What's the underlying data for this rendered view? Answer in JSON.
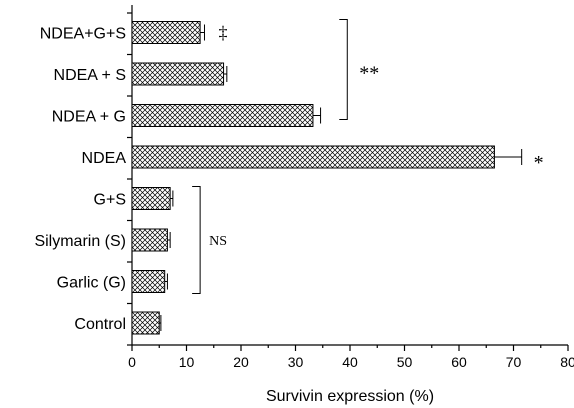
{
  "chart_data": {
    "type": "bar",
    "orientation": "horizontal",
    "categories": [
      "NDEA+G+S",
      "NDEA + S",
      "NDEA + G",
      "NDEA",
      "G+S",
      "Silymarin (S)",
      "Garlic (G)",
      "Control"
    ],
    "values": [
      12.5,
      16.8,
      33.2,
      66.5,
      7.0,
      6.5,
      6.0,
      5.0
    ],
    "errors": [
      0.8,
      0.6,
      1.4,
      5.0,
      0.5,
      0.5,
      0.5,
      0.3
    ],
    "xlabel": "Survivin expression (%)",
    "ylabel": "",
    "xlim": [
      0,
      80
    ],
    "xticks": [
      0,
      10,
      20,
      30,
      40,
      50,
      60,
      70,
      80
    ],
    "grid": false,
    "legend": "none",
    "annotations": {
      "dagger": {
        "text": "‡",
        "category": "NDEA+G+S"
      },
      "ndea_star": {
        "text": "*",
        "category": "NDEA"
      },
      "treated_group": {
        "text": "**",
        "categories": [
          "NDEA+G+S",
          "NDEA + S",
          "NDEA + G"
        ]
      },
      "control_group": {
        "text": "NS",
        "categories": [
          "G+S",
          "Silymarin (S)",
          "Garlic (G)"
        ]
      }
    }
  }
}
